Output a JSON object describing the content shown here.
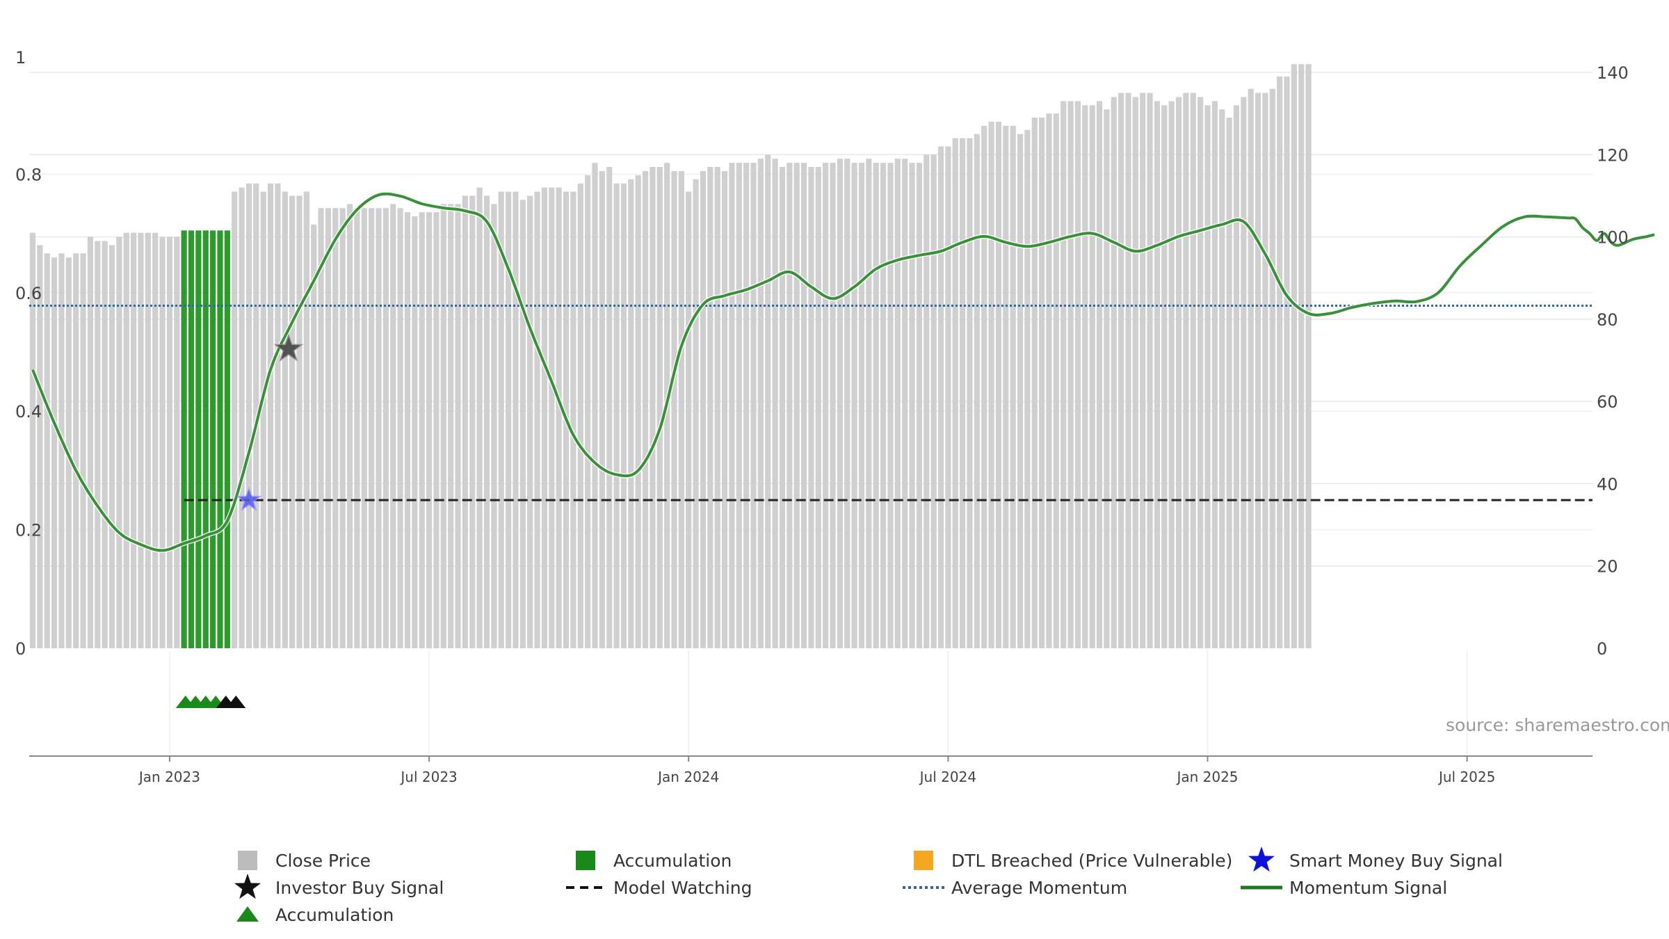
{
  "chart_data": {
    "type": "bar",
    "title": "",
    "xlabel": "",
    "ylabel": "",
    "left_axis": {
      "range": [
        0,
        1
      ],
      "ticks": [
        "0",
        "0.2",
        "0.4",
        "0.6",
        "0.8",
        "1"
      ],
      "tick_values": [
        0,
        0.2,
        0.4,
        0.6,
        0.8,
        1.0
      ]
    },
    "right_axis": {
      "range": [
        0,
        140
      ],
      "ticks": [
        "0",
        "20",
        "40",
        "60",
        "80",
        "100",
        "120",
        "140"
      ],
      "tick_values": [
        0,
        20,
        40,
        60,
        80,
        100,
        120,
        140
      ]
    },
    "x_axis": {
      "ticks": [
        "Jan 2023",
        "Jul 2023",
        "Jan 2024",
        "Jul 2024",
        "Jan 2025",
        "Jul 2025"
      ],
      "tick_positions_week": [
        19,
        55,
        91,
        127,
        163,
        199
      ]
    },
    "close_price": [
      101,
      98,
      96,
      95,
      96,
      95,
      96,
      96,
      100,
      99,
      99,
      98,
      100,
      101,
      101,
      101,
      101,
      101,
      100,
      100,
      100,
      102,
      104,
      104,
      105,
      106,
      106,
      108,
      111,
      112,
      113,
      113,
      111,
      113,
      113,
      111,
      110,
      110,
      111,
      103,
      107,
      107,
      107,
      107,
      108,
      107,
      107,
      107,
      107,
      107,
      108,
      107,
      106,
      105,
      106,
      106,
      106,
      108,
      108,
      108,
      110,
      110,
      112,
      110,
      108,
      111,
      111,
      111,
      109,
      110,
      111,
      112,
      112,
      112,
      111,
      111,
      113,
      115,
      118,
      116,
      117,
      113,
      113,
      114,
      115,
      116,
      117,
      117,
      118,
      116,
      116,
      111,
      114,
      116,
      117,
      117,
      116,
      118,
      118,
      118,
      118,
      119,
      120,
      119,
      117,
      118,
      118,
      118,
      117,
      117,
      118,
      118,
      119,
      119,
      118,
      118,
      119,
      118,
      118,
      118,
      119,
      119,
      118,
      118,
      120,
      120,
      122,
      122,
      124,
      124,
      124,
      125,
      127,
      128,
      128,
      127,
      127,
      125,
      126,
      129,
      129,
      130,
      130,
      133,
      133,
      133,
      132,
      132,
      133,
      131,
      134,
      135,
      135,
      134,
      135,
      135,
      133,
      132,
      133,
      134,
      135,
      135,
      134,
      132,
      133,
      131,
      129,
      132,
      134,
      136,
      135,
      135,
      136,
      139,
      139,
      142,
      142,
      142
    ],
    "accumulation_weeks": [
      21,
      22,
      23,
      24,
      25,
      26,
      27
    ],
    "momentum_signal": [
      [
        0,
        0.47
      ],
      [
        3,
        0.38
      ],
      [
        6,
        0.3
      ],
      [
        9,
        0.24
      ],
      [
        12,
        0.195
      ],
      [
        15,
        0.175
      ],
      [
        18,
        0.165
      ],
      [
        21,
        0.177
      ],
      [
        24,
        0.19
      ],
      [
        27,
        0.215
      ],
      [
        30,
        0.33
      ],
      [
        33,
        0.47
      ],
      [
        36,
        0.55
      ],
      [
        39,
        0.62
      ],
      [
        42,
        0.69
      ],
      [
        45,
        0.74
      ],
      [
        48,
        0.765
      ],
      [
        51,
        0.763
      ],
      [
        54,
        0.75
      ],
      [
        57,
        0.743
      ],
      [
        60,
        0.738
      ],
      [
        63,
        0.72
      ],
      [
        66,
        0.64
      ],
      [
        69,
        0.54
      ],
      [
        72,
        0.45
      ],
      [
        75,
        0.36
      ],
      [
        78,
        0.313
      ],
      [
        81,
        0.293
      ],
      [
        84,
        0.3
      ],
      [
        87,
        0.37
      ],
      [
        90,
        0.51
      ],
      [
        93,
        0.58
      ],
      [
        96,
        0.595
      ],
      [
        99,
        0.605
      ],
      [
        102,
        0.62
      ],
      [
        105,
        0.635
      ],
      [
        108,
        0.61
      ],
      [
        111,
        0.59
      ],
      [
        114,
        0.61
      ],
      [
        117,
        0.64
      ],
      [
        120,
        0.655
      ],
      [
        123,
        0.663
      ],
      [
        126,
        0.67
      ],
      [
        129,
        0.685
      ],
      [
        132,
        0.695
      ],
      [
        135,
        0.685
      ],
      [
        138,
        0.678
      ],
      [
        141,
        0.685
      ],
      [
        144,
        0.695
      ],
      [
        147,
        0.7
      ],
      [
        150,
        0.685
      ],
      [
        153,
        0.67
      ],
      [
        156,
        0.68
      ],
      [
        159,
        0.695
      ],
      [
        162,
        0.705
      ],
      [
        165,
        0.715
      ],
      [
        168,
        0.72
      ],
      [
        171,
        0.665
      ],
      [
        174,
        0.595
      ],
      [
        177,
        0.565
      ],
      [
        180,
        0.565
      ],
      [
        183,
        0.575
      ],
      [
        186,
        0.582
      ],
      [
        189,
        0.586
      ],
      [
        192,
        0.585
      ],
      [
        195,
        0.6
      ],
      [
        198,
        0.645
      ],
      [
        201,
        0.68
      ],
      [
        204,
        0.712
      ],
      [
        207,
        0.728
      ],
      [
        210,
        0.728
      ],
      [
        213,
        0.726
      ],
      [
        214,
        0.725
      ],
      [
        215,
        0.71
      ],
      [
        216,
        0.7
      ],
      [
        217,
        0.688
      ],
      [
        218,
        0.7
      ],
      [
        219,
        0.685
      ],
      [
        220,
        0.68
      ],
      [
        222,
        0.69
      ],
      [
        224,
        0.695
      ],
      [
        225,
        0.698
      ]
    ],
    "average_momentum": 0.578,
    "model_watching": {
      "value": 0.25,
      "start_week": 21
    },
    "investor_buy_signal": {
      "week": 35.5,
      "value": 0.505
    },
    "smart_money_buy_signal": {
      "week": 30,
      "value": 0.25
    },
    "accumulation_markers": [
      {
        "week": 21.2,
        "color": "#1a8a1a"
      },
      {
        "week": 22.6,
        "color": "#1a8a1a"
      },
      {
        "week": 24.0,
        "color": "#1a8a1a"
      },
      {
        "week": 25.4,
        "color": "#1a8a1a"
      },
      {
        "week": 26.8,
        "color": "#111111"
      },
      {
        "week": 28.2,
        "color": "#111111"
      }
    ],
    "legend": [
      {
        "label": "Close Price",
        "symbol": "square",
        "color": "#bbbbbb"
      },
      {
        "label": "Accumulation",
        "symbol": "square",
        "color": "#1a8a1a"
      },
      {
        "label": "DTL Breached (Price Vulnerable)",
        "symbol": "square",
        "color": "#f5a623"
      },
      {
        "label": "Smart Money Buy Signal",
        "symbol": "star",
        "color": "#1010dd"
      },
      {
        "label": "Investor Buy Signal",
        "symbol": "star",
        "color": "#111111"
      },
      {
        "label": "Model Watching",
        "symbol": "dash",
        "color": "#111111"
      },
      {
        "label": "Average Momentum",
        "symbol": "dots",
        "color": "#2a6aa0"
      },
      {
        "label": "Momentum Signal",
        "symbol": "line",
        "color": "#1a7a1a"
      },
      {
        "label": "Accumulation",
        "symbol": "triangle",
        "color": "#1a8a1a"
      }
    ],
    "source": "source: sharemaestro.com"
  }
}
